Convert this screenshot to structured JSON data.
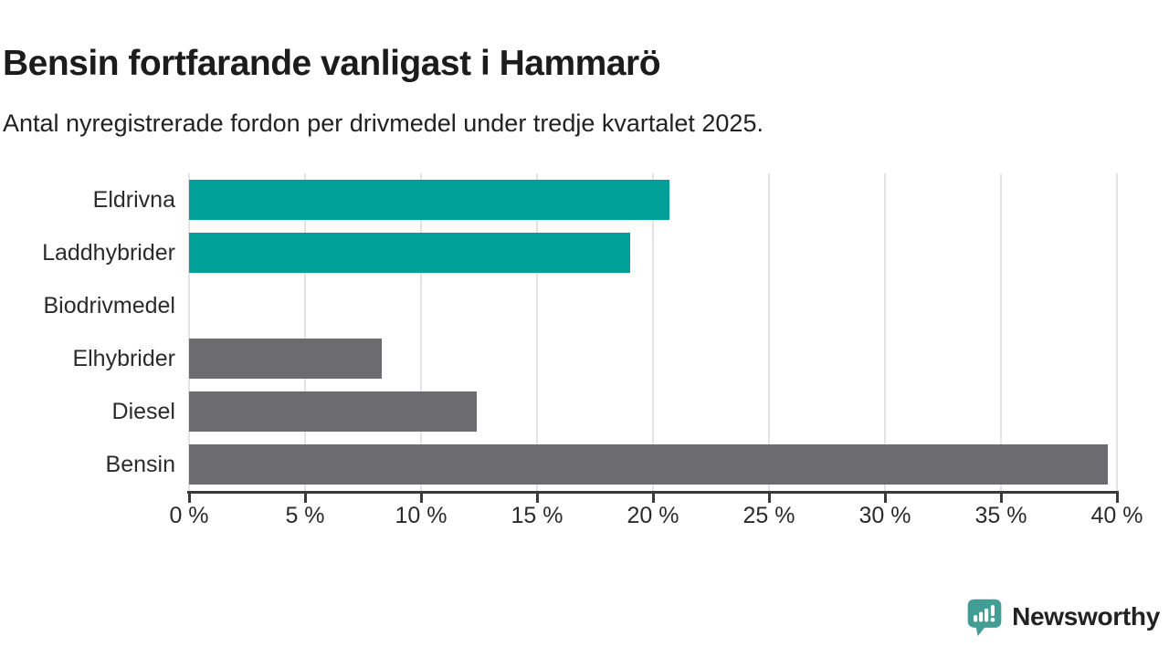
{
  "header": {
    "title": "Bensin fortfarande vanligast i Hammarö",
    "subtitle": "Antal nyregistrerade fordon per drivmedel under tredje kvartalet 2025."
  },
  "chart_data": {
    "type": "bar",
    "orientation": "horizontal",
    "title": "Bensin fortfarande vanligast i Hammarö",
    "subtitle": "Antal nyregistrerade fordon per drivmedel under tredje kvartalet 2025.",
    "categories": [
      "Eldrivna",
      "Laddhybrider",
      "Biodrivmedel",
      "Elhybrider",
      "Diesel",
      "Bensin"
    ],
    "values": [
      20.7,
      19.0,
      0,
      8.3,
      12.4,
      39.6
    ],
    "bar_colors": [
      "#00a099",
      "#00a099",
      "#00a099",
      "#6c6b70",
      "#6c6b70",
      "#6c6b70"
    ],
    "xlabel": "",
    "ylabel": "",
    "xlim": [
      0,
      40
    ],
    "x_ticks": [
      0,
      5,
      10,
      15,
      20,
      25,
      30,
      35,
      40
    ],
    "x_tick_labels": [
      "0 %",
      "5 %",
      "10 %",
      "15 %",
      "20 %",
      "25 %",
      "30 %",
      "35 %",
      "40 %"
    ],
    "grid": true,
    "legend": false
  },
  "colors": {
    "teal_bar": "#00a099",
    "gray_bar": "#6c6b70",
    "axis": "#3a3a3a",
    "gridline": "#e3e3e3",
    "title_text": "#1c1c1c",
    "body_text": "#2b2b2b",
    "logo": "#429e95"
  },
  "branding": {
    "logo_text": "Newsworthy",
    "logo_icon": "speech-bubble-bar-chart-icon"
  }
}
